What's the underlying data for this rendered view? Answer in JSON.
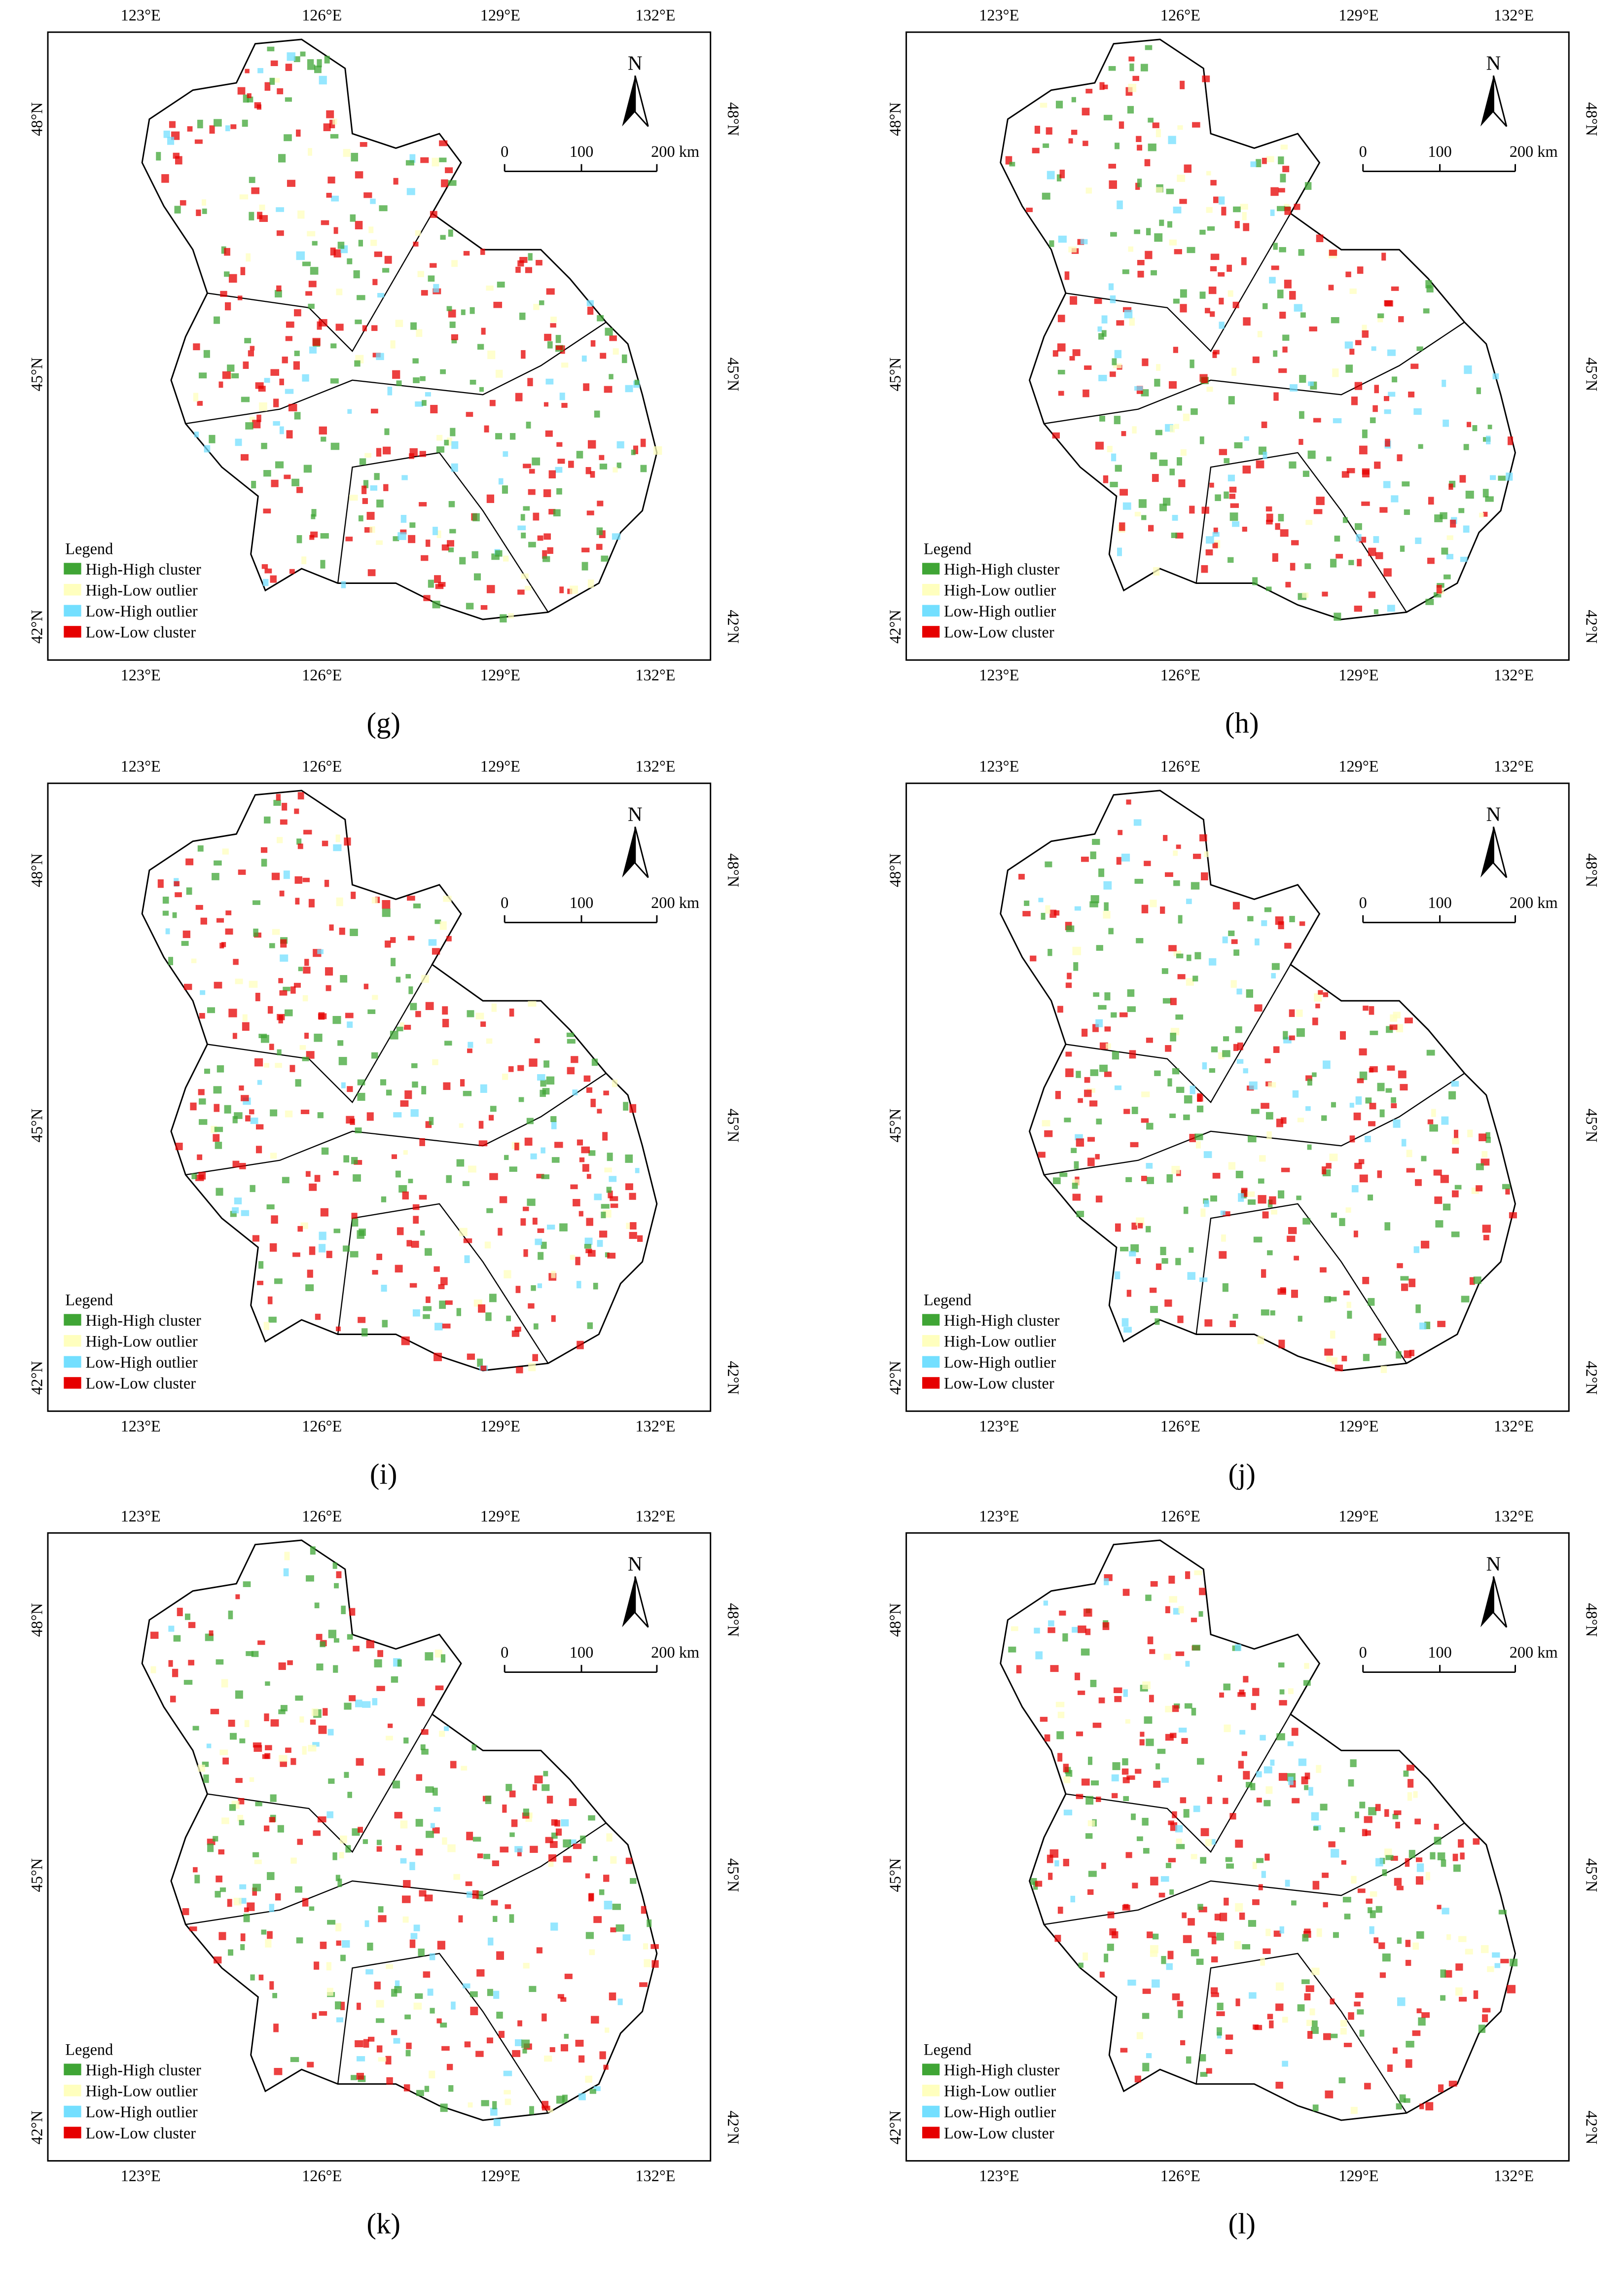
{
  "axes": {
    "longitude_ticks": [
      "123°E",
      "126°E",
      "129°E",
      "132°E"
    ],
    "latitude_ticks": [
      "48°N",
      "45°N",
      "42°N"
    ]
  },
  "north_arrow": "N",
  "scale_bar": {
    "labels": [
      "0",
      "100",
      "200 km"
    ]
  },
  "legend": {
    "title": "Legend",
    "items": [
      {
        "label": "High-High cluster",
        "color": "#3fa535"
      },
      {
        "label": "High-Low outlier",
        "color": "#ffffbe"
      },
      {
        "label": "Low-High outlier",
        "color": "#73dfff"
      },
      {
        "label": "Low-Low cluster",
        "color": "#e60000"
      }
    ]
  },
  "panels": [
    {
      "label": "(g)"
    },
    {
      "label": "(h)"
    },
    {
      "label": "(i)"
    },
    {
      "label": "(j)"
    },
    {
      "label": "(k)"
    },
    {
      "label": "(l)"
    }
  ]
}
